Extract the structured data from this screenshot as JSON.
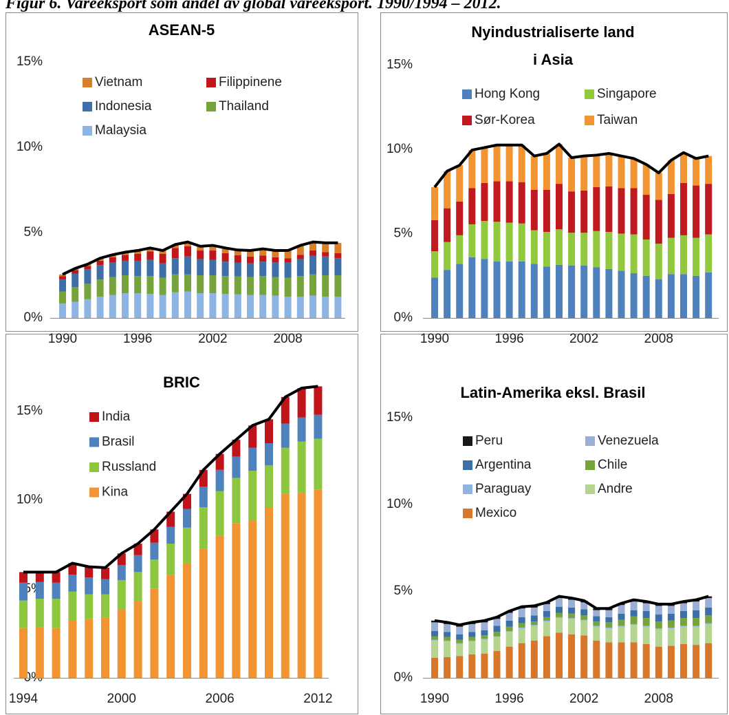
{
  "figure_title": "Figur 6. Vareeksport som andel av global vareeksport. 1990/1994 – 2012.",
  "chart_data": [
    {
      "type": "stacked_bar",
      "title": "ASEAN-5",
      "categories": [
        "1990",
        null,
        null,
        null,
        null,
        null,
        "1996",
        null,
        null,
        null,
        null,
        null,
        "2002",
        null,
        null,
        null,
        null,
        null,
        "2008",
        null,
        null,
        null,
        null
      ],
      "ylim": [
        0,
        17.5
      ],
      "yticks": [
        {
          "value": 0,
          "label": "0%"
        },
        {
          "value": 5,
          "label": "5%"
        },
        {
          "value": 10,
          "label": "10%"
        },
        {
          "value": 15,
          "label": "15%"
        }
      ],
      "series": [
        {
          "name": "Malaysia",
          "color": "#8db4e2",
          "values": [
            0.85,
            0.95,
            1.1,
            1.25,
            1.35,
            1.45,
            1.45,
            1.4,
            1.35,
            1.5,
            1.55,
            1.45,
            1.45,
            1.4,
            1.38,
            1.35,
            1.35,
            1.3,
            1.25,
            1.25,
            1.3,
            1.25,
            1.25
          ]
        },
        {
          "name": "Thailand",
          "color": "#77a33c",
          "values": [
            0.7,
            0.85,
            0.9,
            1.0,
            1.05,
            1.05,
            1.0,
            1.05,
            1.0,
            1.05,
            1.0,
            1.05,
            1.05,
            1.05,
            1.05,
            1.05,
            1.1,
            1.1,
            1.1,
            1.2,
            1.25,
            1.25,
            1.25
          ]
        },
        {
          "name": "Indonesia",
          "color": "#3f6fa8",
          "values": [
            0.7,
            0.8,
            0.85,
            0.85,
            0.85,
            0.85,
            0.9,
            0.95,
            0.85,
            0.95,
            1.05,
            0.95,
            0.9,
            0.85,
            0.8,
            0.8,
            0.85,
            0.85,
            0.9,
            1.0,
            1.1,
            1.1,
            1.0
          ]
        },
        {
          "name": "Filippinene",
          "color": "#c0161c",
          "values": [
            0.2,
            0.2,
            0.2,
            0.25,
            0.3,
            0.35,
            0.4,
            0.5,
            0.55,
            0.6,
            0.6,
            0.5,
            0.55,
            0.5,
            0.45,
            0.4,
            0.35,
            0.3,
            0.25,
            0.25,
            0.3,
            0.25,
            0.3
          ]
        },
        {
          "name": "Vietnam",
          "color": "#d97e29",
          "values": [
            0.1,
            0.1,
            0.1,
            0.15,
            0.15,
            0.15,
            0.2,
            0.2,
            0.2,
            0.2,
            0.25,
            0.25,
            0.3,
            0.3,
            0.3,
            0.35,
            0.4,
            0.4,
            0.45,
            0.55,
            0.5,
            0.55,
            0.6
          ]
        }
      ]
    },
    {
      "type": "stacked_bar",
      "title": [
        "Nyindustrialiserte land",
        "i Asia"
      ],
      "categories": [
        "1990",
        null,
        null,
        null,
        null,
        null,
        "1996",
        null,
        null,
        null,
        null,
        null,
        "2002",
        null,
        null,
        null,
        null,
        null,
        "2008",
        null,
        null,
        null,
        null
      ],
      "ylim": [
        0,
        17.5
      ],
      "yticks": [
        {
          "value": 0,
          "label": "0%"
        },
        {
          "value": 5,
          "label": "5%"
        },
        {
          "value": 10,
          "label": "10%"
        },
        {
          "value": 15,
          "label": "15%"
        }
      ],
      "series": [
        {
          "name": "Hong Kong",
          "color": "#4f81bd",
          "values": [
            2.4,
            2.85,
            3.2,
            3.6,
            3.5,
            3.35,
            3.35,
            3.35,
            3.2,
            3.05,
            3.15,
            3.1,
            3.1,
            3.0,
            2.9,
            2.8,
            2.65,
            2.5,
            2.3,
            2.6,
            2.6,
            2.5,
            2.7
          ]
        },
        {
          "name": "Singapore",
          "color": "#92c83e",
          "values": [
            1.55,
            1.65,
            1.7,
            1.95,
            2.25,
            2.35,
            2.3,
            2.25,
            2.0,
            2.05,
            2.1,
            1.95,
            1.95,
            2.15,
            2.2,
            2.2,
            2.3,
            2.15,
            2.1,
            2.15,
            2.3,
            2.25,
            2.25
          ]
        },
        {
          "name": "Sør-Korea",
          "color": "#c0191f",
          "values": [
            1.85,
            2.0,
            2.0,
            2.15,
            2.25,
            2.4,
            2.45,
            2.45,
            2.4,
            2.5,
            2.7,
            2.45,
            2.5,
            2.6,
            2.7,
            2.7,
            2.75,
            2.65,
            2.6,
            2.6,
            3.1,
            3.1,
            3.0
          ]
        },
        {
          "name": "Taiwan",
          "color": "#f39433",
          "values": [
            1.95,
            2.2,
            2.15,
            2.25,
            2.1,
            2.15,
            2.15,
            2.2,
            2.0,
            2.15,
            2.35,
            2.0,
            2.05,
            1.9,
            1.95,
            1.9,
            1.75,
            1.8,
            1.6,
            2.0,
            1.8,
            1.6,
            1.65
          ]
        }
      ]
    },
    {
      "type": "stacked_bar",
      "title": "BRIC",
      "categories": [
        "1994",
        null,
        null,
        null,
        null,
        null,
        "2000",
        null,
        null,
        null,
        null,
        null,
        "2006",
        null,
        null,
        null,
        null,
        null,
        "2012"
      ],
      "ylim": [
        0,
        17.5
      ],
      "yticks": [
        {
          "value": 0,
          "label": "0%"
        },
        {
          "value": 5,
          "label": "5%"
        },
        {
          "value": 10,
          "label": "10%"
        },
        {
          "value": 15,
          "label": "15%"
        }
      ],
      "series": [
        {
          "name": "Kina",
          "color": "#f39433",
          "values": [
            2.8,
            2.85,
            2.8,
            3.25,
            3.3,
            3.4,
            3.85,
            4.3,
            5.0,
            5.8,
            6.45,
            7.25,
            8.0,
            8.7,
            8.85,
            9.6,
            10.35,
            10.4,
            10.6
          ]
        },
        {
          "name": "Russland",
          "color": "#8dc63f",
          "values": [
            1.55,
            1.6,
            1.65,
            1.6,
            1.4,
            1.3,
            1.65,
            1.65,
            1.65,
            1.75,
            2.0,
            2.35,
            2.5,
            2.55,
            2.8,
            2.35,
            2.6,
            2.9,
            2.85
          ]
        },
        {
          "name": "Brasil",
          "color": "#4f81bd",
          "values": [
            1.0,
            0.95,
            0.9,
            0.95,
            0.95,
            0.85,
            0.85,
            0.95,
            0.95,
            0.95,
            1.05,
            1.15,
            1.2,
            1.2,
            1.3,
            1.25,
            1.35,
            1.35,
            1.35
          ]
        },
        {
          "name": "India",
          "color": "#c0141b",
          "values": [
            0.6,
            0.55,
            0.6,
            0.65,
            0.6,
            0.65,
            0.65,
            0.65,
            0.75,
            0.85,
            0.85,
            0.95,
            0.9,
            0.95,
            1.25,
            1.35,
            1.5,
            1.65,
            1.6
          ]
        }
      ]
    },
    {
      "type": "stacked_bar",
      "title": "Latin-Amerika eksl. Brasil",
      "categories": [
        "1990",
        null,
        null,
        null,
        null,
        null,
        "1996",
        null,
        null,
        null,
        null,
        null,
        "2002",
        null,
        null,
        null,
        null,
        null,
        "2008",
        null,
        null,
        null,
        null
      ],
      "ylim": [
        0,
        17.5
      ],
      "yticks": [
        {
          "value": 0,
          "label": "0%"
        },
        {
          "value": 5,
          "label": "5%"
        },
        {
          "value": 10,
          "label": "10%"
        },
        {
          "value": 15,
          "label": "15%"
        }
      ],
      "series": [
        {
          "name": "Mexico",
          "color": "#d8772a",
          "values": [
            1.15,
            1.2,
            1.25,
            1.35,
            1.4,
            1.55,
            1.8,
            2.0,
            2.15,
            2.4,
            2.6,
            2.5,
            2.45,
            2.15,
            2.05,
            2.05,
            2.05,
            1.95,
            1.8,
            1.85,
            1.95,
            1.9,
            2.0
          ]
        },
        {
          "name": "Andre",
          "color": "#b5d48f",
          "values": [
            1.0,
            0.9,
            0.7,
            0.75,
            0.8,
            0.8,
            0.85,
            0.85,
            0.85,
            0.85,
            0.85,
            0.9,
            0.85,
            0.8,
            0.8,
            0.9,
            1.0,
            1.0,
            1.0,
            1.0,
            1.0,
            1.05,
            1.1
          ]
        },
        {
          "name": "Paraguay",
          "color": "#8db4e2",
          "values": [
            0.05,
            0.05,
            0.05,
            0.05,
            0.05,
            0.05,
            0.05,
            0.05,
            0.05,
            0.05,
            0.05,
            0.05,
            0.05,
            0.05,
            0.05,
            0.05,
            0.05,
            0.05,
            0.05,
            0.05,
            0.05,
            0.05,
            0.05
          ]
        },
        {
          "name": "Chile",
          "color": "#77a33c",
          "values": [
            0.2,
            0.2,
            0.2,
            0.2,
            0.2,
            0.25,
            0.25,
            0.25,
            0.2,
            0.2,
            0.25,
            0.25,
            0.25,
            0.25,
            0.3,
            0.35,
            0.45,
            0.45,
            0.4,
            0.4,
            0.45,
            0.45,
            0.45
          ]
        },
        {
          "name": "Argentina",
          "color": "#3b6fa8",
          "values": [
            0.3,
            0.3,
            0.3,
            0.3,
            0.3,
            0.35,
            0.35,
            0.35,
            0.35,
            0.35,
            0.35,
            0.35,
            0.35,
            0.3,
            0.3,
            0.35,
            0.35,
            0.4,
            0.4,
            0.4,
            0.4,
            0.45,
            0.45
          ]
        },
        {
          "name": "Venezuela",
          "color": "#9aaed6",
          "values": [
            0.5,
            0.45,
            0.45,
            0.45,
            0.45,
            0.4,
            0.45,
            0.5,
            0.45,
            0.4,
            0.5,
            0.45,
            0.4,
            0.35,
            0.4,
            0.5,
            0.5,
            0.45,
            0.5,
            0.45,
            0.45,
            0.5,
            0.55
          ]
        },
        {
          "name": "Peru",
          "color": "#1a1a1a",
          "values": [
            0.1,
            0.1,
            0.1,
            0.1,
            0.1,
            0.1,
            0.1,
            0.1,
            0.1,
            0.1,
            0.1,
            0.1,
            0.1,
            0.1,
            0.1,
            0.1,
            0.1,
            0.1,
            0.1,
            0.1,
            0.1,
            0.1,
            0.1
          ]
        }
      ]
    }
  ]
}
